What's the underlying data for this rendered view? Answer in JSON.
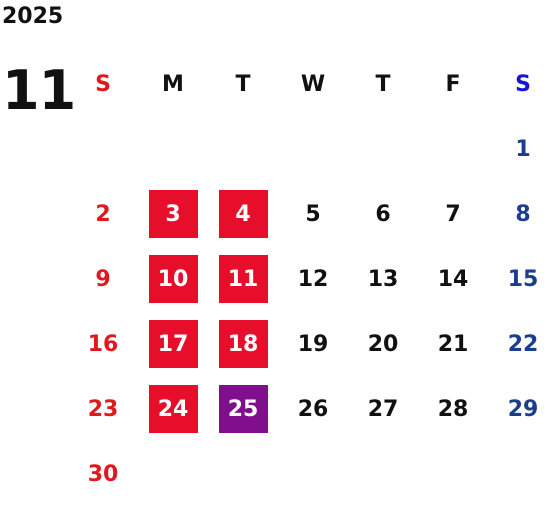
{
  "calendar": {
    "year": "2025",
    "month": "11",
    "weekday_headers": [
      "S",
      "M",
      "T",
      "W",
      "T",
      "F",
      "S"
    ],
    "weeks": [
      [
        "",
        "",
        "",
        "",
        "",
        "",
        "1"
      ],
      [
        "2",
        "3",
        "4",
        "5",
        "6",
        "7",
        "8"
      ],
      [
        "9",
        "10",
        "11",
        "12",
        "13",
        "14",
        "15"
      ],
      [
        "16",
        "17",
        "18",
        "19",
        "20",
        "21",
        "22"
      ],
      [
        "23",
        "24",
        "25",
        "26",
        "27",
        "28",
        "29"
      ],
      [
        "30",
        "",
        "",
        "",
        "",
        "",
        ""
      ]
    ],
    "highlighted_days": [
      "3",
      "4",
      "10",
      "11",
      "17",
      "18",
      "24"
    ],
    "current_day": "25",
    "colors": {
      "sunday": "#e0191f",
      "saturday": "#1a3d8f",
      "saturday_header": "#1414d4",
      "highlight": "#e60e2a",
      "current": "#7f0f8c",
      "weekday": "#111111"
    }
  }
}
